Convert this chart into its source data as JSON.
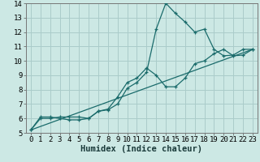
{
  "title": "",
  "xlabel": "Humidex (Indice chaleur)",
  "bg_color": "#cce8e4",
  "grid_color": "#aaccca",
  "line_color": "#1a6b6b",
  "line1_x": [
    0,
    1,
    2,
    3,
    4,
    5,
    6,
    7,
    8,
    9,
    10,
    11,
    12,
    13,
    14,
    15,
    16,
    17,
    18,
    19,
    20,
    21,
    22,
    23
  ],
  "line1_y": [
    5.2,
    6.1,
    6.1,
    6.0,
    5.9,
    5.9,
    6.0,
    6.5,
    6.6,
    7.0,
    8.1,
    8.5,
    9.2,
    12.2,
    14.0,
    13.3,
    12.7,
    12.0,
    12.2,
    10.8,
    10.35,
    10.4,
    10.8,
    10.8
  ],
  "line2_x": [
    0,
    1,
    2,
    3,
    4,
    5,
    6,
    7,
    8,
    9,
    10,
    11,
    12,
    13,
    14,
    15,
    16,
    17,
    18,
    19,
    20,
    21,
    22,
    23
  ],
  "line2_y": [
    5.2,
    6.0,
    6.0,
    6.1,
    6.1,
    6.1,
    6.0,
    6.5,
    6.65,
    7.5,
    8.5,
    8.8,
    9.5,
    9.0,
    8.2,
    8.2,
    8.8,
    9.8,
    10.0,
    10.5,
    10.8,
    10.35,
    10.4,
    10.8
  ],
  "line3_x": [
    0,
    23
  ],
  "line3_y": [
    5.2,
    10.8
  ],
  "xlim": [
    -0.5,
    23.5
  ],
  "ylim": [
    5,
    14
  ],
  "xticks": [
    0,
    1,
    2,
    3,
    4,
    5,
    6,
    7,
    8,
    9,
    10,
    11,
    12,
    13,
    14,
    15,
    16,
    17,
    18,
    19,
    20,
    21,
    22,
    23
  ],
  "yticks": [
    5,
    6,
    7,
    8,
    9,
    10,
    11,
    12,
    13,
    14
  ],
  "xlabel_fontsize": 7.5,
  "tick_fontsize": 6.5
}
